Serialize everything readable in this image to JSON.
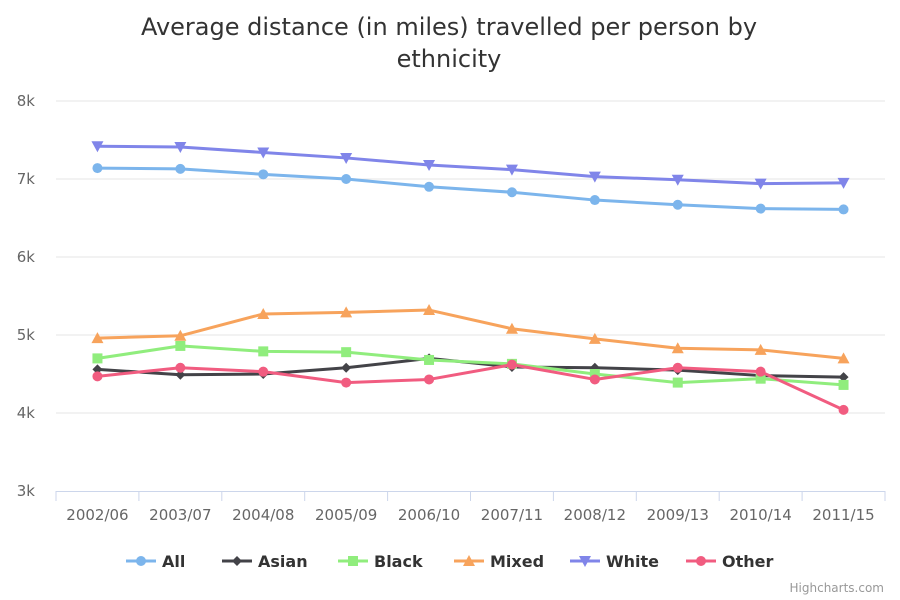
{
  "chart_data": {
    "type": "line",
    "title": "Average distance (in miles) travelled per person by ethnicity",
    "title_lines": [
      "Average distance (in miles) travelled per person by",
      "ethnicity"
    ],
    "credits": "Highcharts.com",
    "categories": [
      "2002/06",
      "2003/07",
      "2004/08",
      "2005/09",
      "2006/10",
      "2007/11",
      "2008/12",
      "2009/13",
      "2010/14",
      "2011/15"
    ],
    "ylim": [
      3000,
      8000
    ],
    "yticks": [
      {
        "value": 3000,
        "label": "3k"
      },
      {
        "value": 4000,
        "label": "4k"
      },
      {
        "value": 5000,
        "label": "5k"
      },
      {
        "value": 6000,
        "label": "6k"
      },
      {
        "value": 7000,
        "label": "7k"
      },
      {
        "value": 8000,
        "label": "8k"
      }
    ],
    "grid": true,
    "legend_position": "bottom",
    "series": [
      {
        "name": "All",
        "color": "#7cb5ec",
        "marker": "circle",
        "values": [
          7140,
          7130,
          7060,
          7000,
          6900,
          6830,
          6730,
          6670,
          6620,
          6610
        ]
      },
      {
        "name": "Asian",
        "color": "#434348",
        "marker": "diamond",
        "values": [
          4560,
          4490,
          4500,
          4580,
          4700,
          4590,
          4580,
          4550,
          4480,
          4460
        ]
      },
      {
        "name": "Black",
        "color": "#90ed7d",
        "marker": "square",
        "values": [
          4700,
          4860,
          4790,
          4780,
          4680,
          4630,
          4500,
          4390,
          4440,
          4360
        ]
      },
      {
        "name": "Mixed",
        "color": "#f7a35c",
        "marker": "triangle",
        "values": [
          4960,
          4990,
          5270,
          5290,
          5320,
          5080,
          4950,
          4830,
          4810,
          4700
        ]
      },
      {
        "name": "White",
        "color": "#8085e9",
        "marker": "triangle-down",
        "values": [
          7420,
          7410,
          7340,
          7270,
          7180,
          7120,
          7030,
          6990,
          6940,
          6950
        ]
      },
      {
        "name": "Other",
        "color": "#f15c80",
        "marker": "circle",
        "values": [
          4470,
          4580,
          4530,
          4390,
          4430,
          4620,
          4430,
          4580,
          4530,
          4040
        ]
      }
    ]
  }
}
